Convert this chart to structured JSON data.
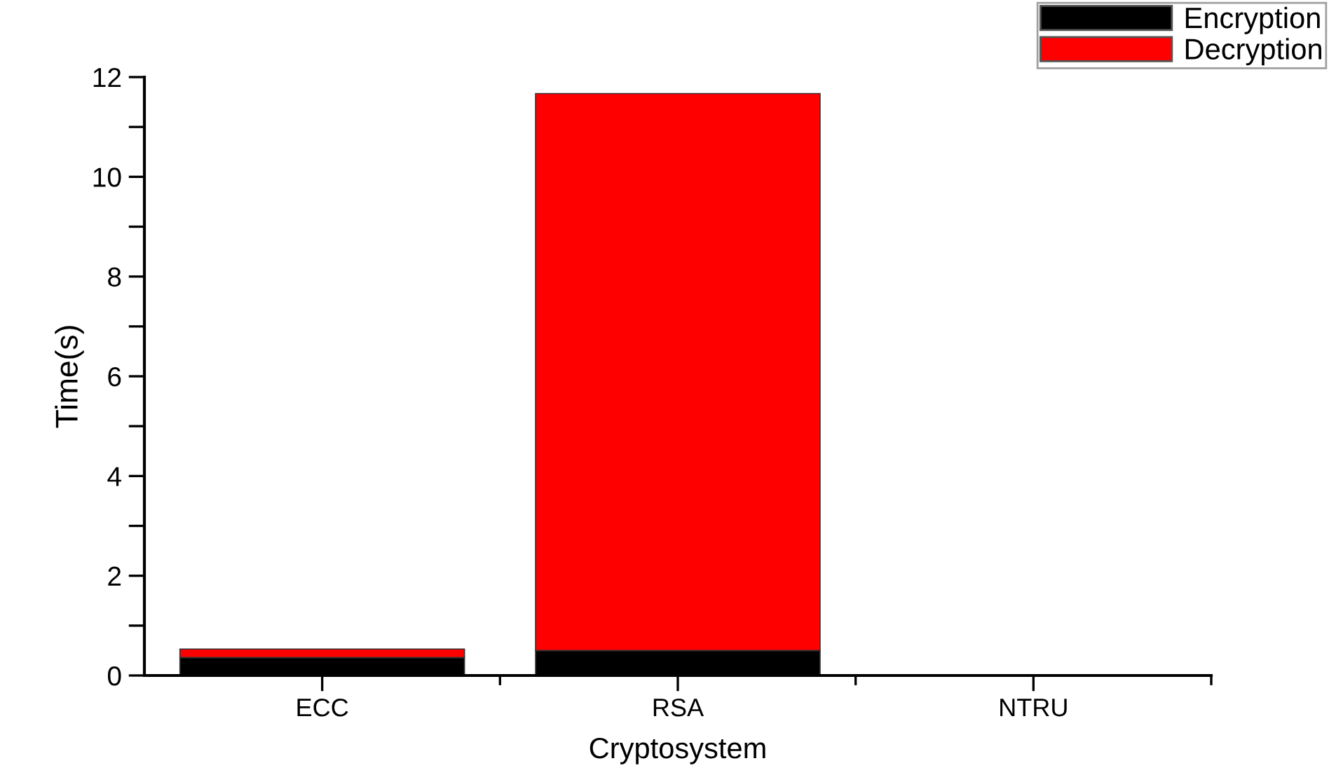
{
  "chart_data": {
    "type": "bar",
    "stacked": true,
    "xlabel": "Cryptosystem",
    "ylabel": "Time(s)",
    "categories": [
      "ECC",
      "RSA",
      "NTRU"
    ],
    "series": [
      {
        "name": "Encryption",
        "color": "#000000",
        "values": [
          0.36,
          0.5,
          null
        ]
      },
      {
        "name": "Decryption",
        "color": "#ff0000",
        "values": [
          0.17,
          11.17,
          0.01
        ]
      }
    ],
    "ylim": [
      0,
      12
    ],
    "yticks": [
      0,
      {
        "value": 1,
        "label": null
      },
      2,
      {
        "value": 3,
        "label": null
      },
      4,
      {
        "value": 5,
        "label": null
      },
      6,
      {
        "value": 7,
        "label": null
      },
      8,
      {
        "value": 9,
        "label": null
      },
      10,
      {
        "value": 11,
        "label": null
      },
      12
    ],
    "grid": false,
    "legend": "top right"
  }
}
